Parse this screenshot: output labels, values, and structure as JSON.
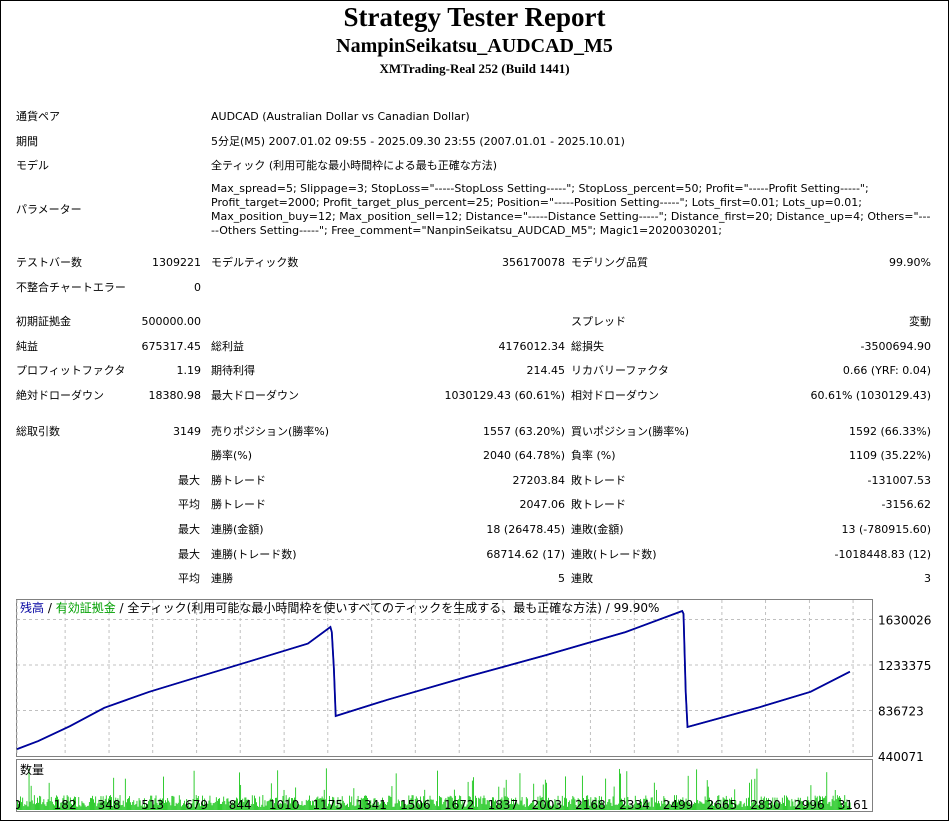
{
  "header": {
    "title": "Strategy Tester Report",
    "ea": "NampinSeikatsu_AUDCAD_M5",
    "server": "XMTrading-Real 252 (Build 1441)"
  },
  "info": {
    "pair_label": "通貨ペア",
    "pair": "AUDCAD (Australian Dollar vs Canadian Dollar)",
    "period_label": "期間",
    "period": "5分足(M5) 2007.01.02 09:55 - 2025.09.30 23:55 (2007.01.01 - 2025.10.01)",
    "model_label": "モデル",
    "model": "全ティック (利用可能な最小時間枠による最も正確な方法)",
    "params_label": "パラメーター",
    "params": "Max_spread=5; Slippage=3; StopLoss=\"-----StopLoss Setting-----\"; StopLoss_percent=50; Profit=\"-----Profit Setting-----\"; Profit_target=2000; Profit_target_plus_percent=25; Position=\"-----Position Setting-----\"; Lots_first=0.01; Lots_up=0.01; Max_position_buy=12; Max_position_sell=12; Distance=\"-----Distance Setting-----\"; Distance_first=20; Distance_up=4; Others=\"-----Others Setting-----\"; Free_comment=\"NanpinSeikatsu_AUDCAD_M5\"; Magic1=2020030201;"
  },
  "stats": {
    "bars_label": "テストバー数",
    "bars": "1309221",
    "ticks_label": "モデルティック数",
    "ticks": "356170078",
    "quality_label": "モデリング品質",
    "quality": "99.90%",
    "mismatch_label": "不整合チャートエラー",
    "mismatch": "0",
    "deposit_label": "初期証拠金",
    "deposit": "500000.00",
    "spread_label": "スプレッド",
    "spread": "変動",
    "net_label": "純益",
    "net": "675317.45",
    "gross_profit_label": "総利益",
    "gross_profit": "4176012.34",
    "gross_loss_label": "総損失",
    "gross_loss": "-3500694.90",
    "pf_label": "プロフィットファクタ",
    "pf": "1.19",
    "expected_label": "期待利得",
    "expected": "214.45",
    "rf_label": "リカバリーファクタ",
    "rf": "0.66 (YRF: 0.04)",
    "abs_dd_label": "絶対ドローダウン",
    "abs_dd": "18380.98",
    "max_dd_label": "最大ドローダウン",
    "max_dd": "1030129.43 (60.61%)",
    "rel_dd_label": "相対ドローダウン",
    "rel_dd": "60.61% (1030129.43)",
    "trades_label": "総取引数",
    "trades": "3149",
    "short_label": "売りポジション(勝率%)",
    "short": "1557 (63.20%)",
    "long_label": "買いポジション(勝率%)",
    "long": "1592 (66.33%)",
    "win_label": "勝率(%)",
    "win": "2040 (64.78%)",
    "loss_label": "負率 (%)",
    "loss": "1109 (35.22%)",
    "max": "最大",
    "avg": "平均",
    "lw_label": "勝トレード",
    "lw": "27203.84",
    "ll_label": "敗トレード",
    "ll": "-131007.53",
    "aw_label": "勝トレード",
    "aw": "2047.06",
    "al_label": "敗トレード",
    "al": "-3156.62",
    "mcw_label": "連勝(金額)",
    "mcw": "18 (26478.45)",
    "mcl_label": "連敗(金額)",
    "mcl": "13 (-780915.60)",
    "mcwp_label": "連勝(トレード数)",
    "mcwp": "68714.62 (17)",
    "mclp_label": "連敗(トレード数)",
    "mclp": "-1018448.83 (12)",
    "acw_label": "連勝",
    "acw": "5",
    "acl_label": "連敗",
    "acl": "3"
  },
  "chart_data": {
    "type": "line",
    "legend": {
      "balance": "残高",
      "sep": " / ",
      "equity": "有効証拠金",
      "model": "全ティック(利用可能な最小時間枠を使いすべてのティックを生成する、最も正確な方法)",
      "quality": "99.90%"
    },
    "volume_label": "数量",
    "colors": {
      "balance": "#0000a0",
      "equity": "#00b000",
      "volume": "#00c000",
      "grid": "#c0c0c0"
    },
    "ylim": [
      440071,
      1720000
    ],
    "yticks": [
      "1630026",
      "1233375",
      "836723",
      "440071"
    ],
    "xticks": [
      "0",
      "182",
      "348",
      "513",
      "679",
      "844",
      "1010",
      "1175",
      "1341",
      "1506",
      "1672",
      "1837",
      "2003",
      "2168",
      "2334",
      "2499",
      "2665",
      "2830",
      "2996",
      "3161"
    ],
    "grid": true,
    "balance": {
      "x": [
        0,
        80,
        200,
        330,
        500,
        700,
        900,
        1100,
        1185,
        1190,
        1198,
        1205,
        1400,
        1700,
        2000,
        2300,
        2515,
        2520,
        2528,
        2535,
        2800,
        3000,
        3149
      ],
      "y": [
        500000,
        570000,
        700000,
        860000,
        1000000,
        1140000,
        1280000,
        1420000,
        1565000,
        1520000,
        1200000,
        789000,
        930000,
        1130000,
        1320000,
        1520000,
        1704000,
        1680000,
        1000000,
        693000,
        860000,
        1000000,
        1175317
      ]
    }
  }
}
